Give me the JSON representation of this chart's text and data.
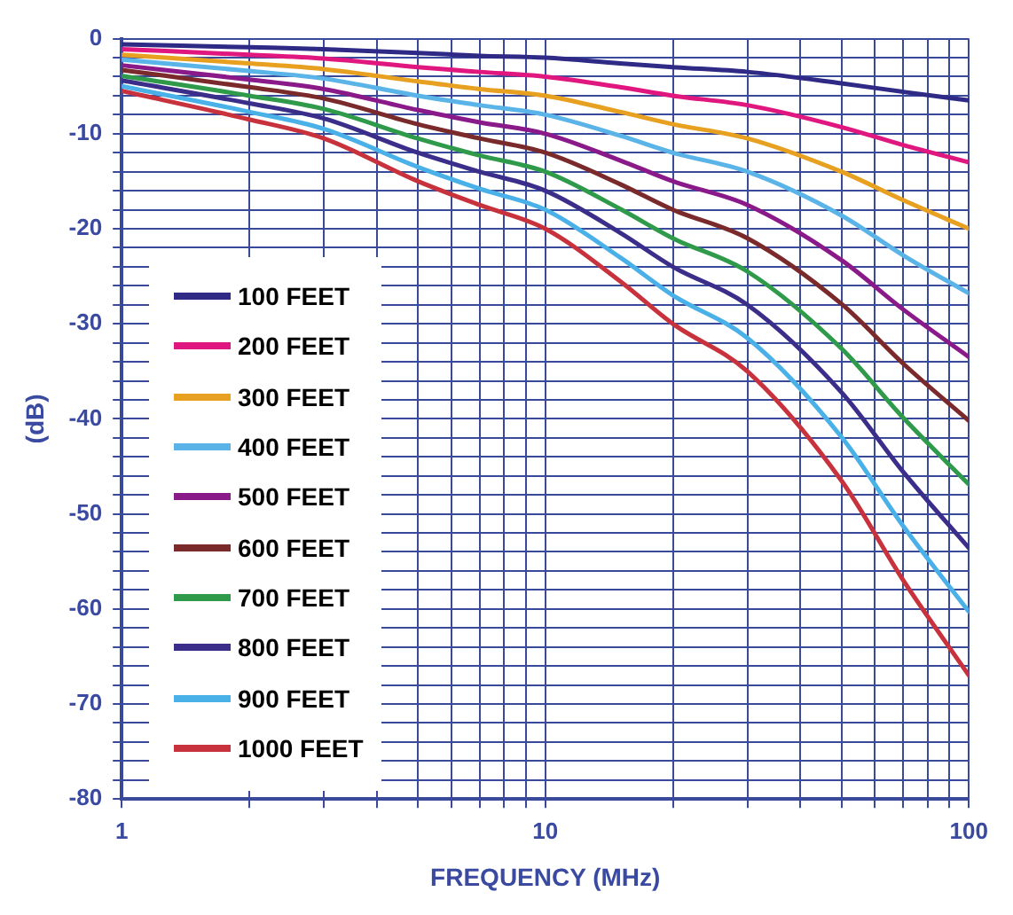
{
  "chart_data": {
    "type": "line",
    "xlabel": "FREQUENCY (MHz)",
    "ylabel": "(dB)",
    "log": "x",
    "x": [
      1,
      2,
      3,
      5,
      7,
      10,
      15,
      20,
      30,
      50,
      70,
      100
    ],
    "xlim": [
      1,
      100
    ],
    "xticks": [
      1,
      {
        "value": 2,
        "label": null
      },
      {
        "value": 3,
        "label": null
      },
      {
        "value": 4,
        "label": null
      },
      {
        "value": 5,
        "label": null
      },
      {
        "value": 6,
        "label": null
      },
      {
        "value": 7,
        "label": null
      },
      {
        "value": 8,
        "label": null
      },
      {
        "value": 9,
        "label": null
      },
      10,
      {
        "value": 20,
        "label": null
      },
      {
        "value": 30,
        "label": null
      },
      {
        "value": 40,
        "label": null
      },
      {
        "value": 50,
        "label": null
      },
      {
        "value": 60,
        "label": null
      },
      {
        "value": 70,
        "label": null
      },
      {
        "value": 80,
        "label": null
      },
      {
        "value": 90,
        "label": null
      },
      100
    ],
    "ylim": [
      -80,
      0
    ],
    "yticks": [
      -80,
      {
        "value": -78,
        "label": null
      },
      {
        "value": -76,
        "label": null
      },
      {
        "value": -74,
        "label": null
      },
      {
        "value": -72,
        "label": null
      },
      -70,
      {
        "value": -68,
        "label": null
      },
      {
        "value": -66,
        "label": null
      },
      {
        "value": -64,
        "label": null
      },
      {
        "value": -62,
        "label": null
      },
      -60,
      {
        "value": -58,
        "label": null
      },
      {
        "value": -56,
        "label": null
      },
      {
        "value": -54,
        "label": null
      },
      {
        "value": -52,
        "label": null
      },
      -50,
      {
        "value": -48,
        "label": null
      },
      {
        "value": -46,
        "label": null
      },
      {
        "value": -44,
        "label": null
      },
      {
        "value": -42,
        "label": null
      },
      -40,
      {
        "value": -38,
        "label": null
      },
      {
        "value": -36,
        "label": null
      },
      {
        "value": -34,
        "label": null
      },
      {
        "value": -32,
        "label": null
      },
      -30,
      {
        "value": -28,
        "label": null
      },
      {
        "value": -26,
        "label": null
      },
      {
        "value": -24,
        "label": null
      },
      {
        "value": -22,
        "label": null
      },
      -20,
      {
        "value": -18,
        "label": null
      },
      {
        "value": -16,
        "label": null
      },
      {
        "value": -14,
        "label": null
      },
      {
        "value": -12,
        "label": null
      },
      -10,
      {
        "value": -8,
        "label": null
      },
      {
        "value": -6,
        "label": null
      },
      {
        "value": -4,
        "label": null
      },
      {
        "value": -2,
        "label": null
      },
      0
    ],
    "grid": true,
    "legend": "bottom left",
    "marker": "none",
    "line_style": "solid",
    "series": [
      {
        "name": "100 FEET",
        "color": "#2e2a86",
        "values": [
          -0.6,
          -0.9,
          -1.1,
          -1.5,
          -1.8,
          -2,
          -2.6,
          -3,
          -3.5,
          -4.7,
          -5.6,
          -6.5
        ]
      },
      {
        "name": "200 FEET",
        "color": "#e0177e",
        "values": [
          -1.1,
          -1.7,
          -2.1,
          -3,
          -3.5,
          -4,
          -5.1,
          -6,
          -7,
          -9.3,
          -11.2,
          -13
        ]
      },
      {
        "name": "300 FEET",
        "color": "#e8a020",
        "values": [
          -1.7,
          -2.6,
          -3.2,
          -4.5,
          -5.3,
          -6,
          -7.7,
          -9,
          -10.5,
          -14,
          -17,
          -20
        ]
      },
      {
        "name": "400 FEET",
        "color": "#5ab4e8",
        "values": [
          -2.2,
          -3.4,
          -4.2,
          -6,
          -7,
          -8,
          -10.2,
          -12,
          -14,
          -18.6,
          -22.8,
          -26.8
        ]
      },
      {
        "name": "500 FEET",
        "color": "#8a1a8a",
        "values": [
          -2.8,
          -4.3,
          -5.3,
          -7.5,
          -8.8,
          -10,
          -12.8,
          -15,
          -17.5,
          -23.3,
          -28.5,
          -33.5
        ]
      },
      {
        "name": "600 FEET",
        "color": "#7a2a2a",
        "values": [
          -3.3,
          -5.1,
          -6.3,
          -9,
          -10.5,
          -12,
          -15.3,
          -18,
          -21,
          -27.9,
          -34.2,
          -40.2
        ]
      },
      {
        "name": "700 FEET",
        "color": "#2e9a4a",
        "values": [
          -3.9,
          -6,
          -7.4,
          -10.5,
          -12.3,
          -14,
          -17.9,
          -21,
          -24.5,
          -32.6,
          -39.9,
          -46.9
        ]
      },
      {
        "name": "800 FEET",
        "color": "#3a2e8a",
        "values": [
          -4.4,
          -6.8,
          -8.4,
          -12,
          -14,
          -16,
          -20.4,
          -24,
          -28,
          -37.2,
          -45.6,
          -53.6
        ]
      },
      {
        "name": "900 FEET",
        "color": "#4ab0e8",
        "values": [
          -5,
          -7.7,
          -9.5,
          -13.5,
          -15.8,
          -18,
          -23,
          -27,
          -31.5,
          -41.9,
          -51.3,
          -60.3
        ]
      },
      {
        "name": "1000 FEET",
        "color": "#c8323c",
        "values": [
          -5.5,
          -8.5,
          -10.5,
          -15,
          -17.5,
          -20,
          -25.5,
          -30,
          -35,
          -46.5,
          -57,
          -67
        ]
      }
    ]
  }
}
